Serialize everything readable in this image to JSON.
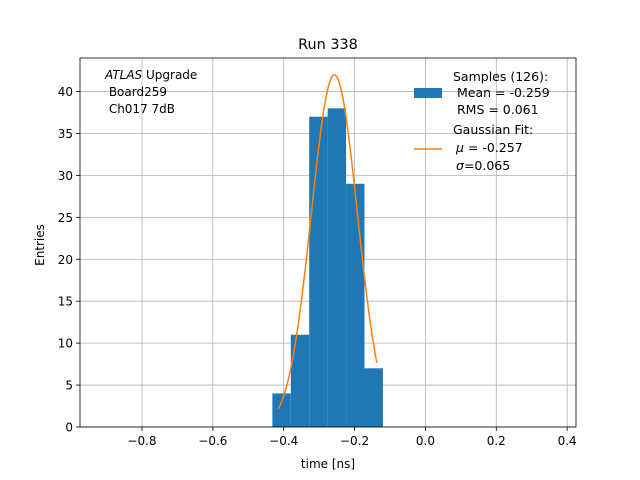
{
  "chart_data": {
    "type": "bar",
    "title": "Run 338",
    "xlabel": "time [ns]",
    "ylabel": "Entries",
    "xlim": [
      -0.975,
      0.425
    ],
    "ylim": [
      0,
      44
    ],
    "x_ticks": [
      -0.8,
      -0.6,
      -0.4,
      -0.2,
      0.0,
      0.2,
      0.4
    ],
    "x_tick_labels": [
      "−0.8",
      "−0.6",
      "−0.4",
      "−0.2",
      "0.0",
      "0.2",
      "0.4"
    ],
    "y_ticks": [
      0,
      5,
      10,
      15,
      20,
      25,
      30,
      35,
      40
    ],
    "y_tick_labels": [
      "0",
      "5",
      "10",
      "15",
      "20",
      "25",
      "30",
      "35",
      "40"
    ],
    "grid": true,
    "legend_position": "top-right",
    "bin_edges": [
      -0.432,
      -0.38,
      -0.328,
      -0.276,
      -0.224,
      -0.172,
      -0.12
    ],
    "counts": [
      4,
      11,
      37,
      38,
      29,
      7
    ],
    "bar_color": "#1f77b4",
    "fit": {
      "mu": -0.257,
      "sigma": 0.065,
      "peak": 42,
      "x_range": [
        -0.415,
        -0.137
      ],
      "color": "#ff7f0e"
    },
    "legend": {
      "samples_lines": [
        "Samples (126):",
        " Mean = -0.259",
        " RMS = 0.061"
      ],
      "fit_title": "Gaussian Fit:",
      "fit_mu_symbol": "μ",
      "fit_mu_text": " = -0.257",
      "fit_sigma_symbol": "σ",
      "fit_sigma_text": "=0.065"
    },
    "annotation": {
      "atlas": "ATLAS",
      "upgrade": " Upgrade",
      "line2": " Board259",
      "line3": " Ch017 7dB"
    }
  }
}
